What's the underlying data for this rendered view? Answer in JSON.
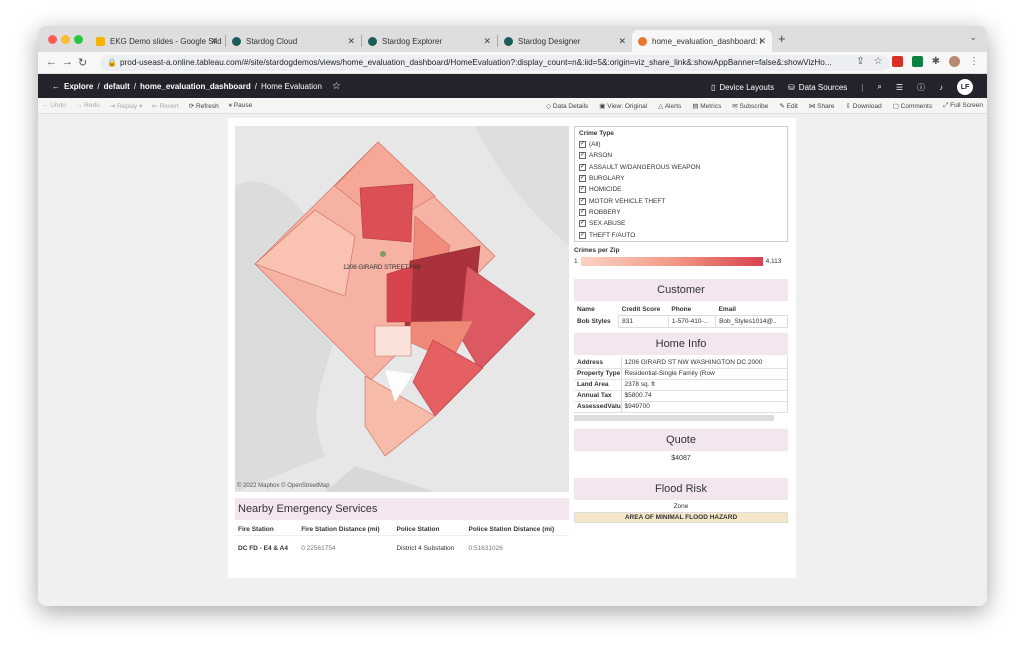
{
  "browser": {
    "tabs": [
      {
        "label": "EKG Demo slides - Google Slid",
        "icon": "slides-icon",
        "color": "#f4b400"
      },
      {
        "label": "Stardog Cloud",
        "icon": "stardog-icon",
        "color": "#1c5d5a"
      },
      {
        "label": "Stardog Explorer",
        "icon": "stardog-icon",
        "color": "#1c5d5a"
      },
      {
        "label": "Stardog Designer",
        "icon": "stardog-icon",
        "color": "#1c5d5a"
      },
      {
        "label": "home_evaluation_dashboard: I",
        "icon": "tableau-icon",
        "color": "#e8772e"
      }
    ],
    "url": "prod-useast-a.online.tableau.com/#/site/stardogdemos/views/home_evaluation_dashboard/HomeEvaluation?:display_count=n&:iid=5&:origin=viz_share_link&:showAppBanner=false&:showVizHo..."
  },
  "header": {
    "breadcrumb": [
      "Explore",
      "default",
      "home_evaluation_dashboard",
      "Home Evaluation"
    ],
    "device_layouts": "Device Layouts",
    "data_sources": "Data Sources",
    "avatar": "LF"
  },
  "toolbar": {
    "left": [
      "Undo",
      "Redo",
      "Replay",
      "Revert"
    ],
    "refresh": "Refresh",
    "pause": "Pause",
    "right": [
      "Data Details",
      "View: Original",
      "Alerts",
      "Metrics",
      "Subscribe",
      "Edit",
      "Share",
      "Download",
      "Comments",
      "Full Screen"
    ]
  },
  "map": {
    "address_label": "1206 GIRARD STREET NW",
    "credit": "© 2022 Mapbox  © OpenStreetMap"
  },
  "filter": {
    "title": "Crime Type",
    "items": [
      "(All)",
      "ARSON",
      "ASSAULT W/DANGEROUS WEAPON",
      "BURGLARY",
      "HOMICIDE",
      "MOTOR VEHICLE THEFT",
      "ROBBERY",
      "SEX ABUSE",
      "THEFT F/AUTO"
    ]
  },
  "legend": {
    "title": "Crimes per Zip",
    "min": "1",
    "max": "4,113"
  },
  "customer": {
    "title": "Customer",
    "headers": [
      "Name",
      "Credit Score",
      "Phone",
      "Email"
    ],
    "row": [
      "Bob Styles",
      "831",
      "1-570-410-..",
      "Bob_Styles1014@.."
    ]
  },
  "home_info": {
    "title": "Home Info",
    "rows": [
      [
        "Address",
        "1206 GIRARD ST NW WASHINGTON DC 2000"
      ],
      [
        "Property Type",
        "Residential-Single Family (Row"
      ],
      [
        "Land Area",
        "2378 sq. ft"
      ],
      [
        "Annual Tax",
        "$5800.74"
      ],
      [
        "AssessedValue",
        "$949700"
      ]
    ]
  },
  "quote": {
    "title": "Quote",
    "value": "$4087"
  },
  "flood": {
    "title": "Flood Risk",
    "zone_label": "Zone",
    "zone_value": "AREA OF MINIMAL FLOOD HAZARD"
  },
  "nearby": {
    "title": "Nearby Emergency Services",
    "headers": [
      "Fire Station",
      "Fire Station Distance (mi)",
      "Police Station",
      "Police Station Distance (mi)"
    ],
    "row": [
      "DC FD - E4 & A4",
      "0.22561754",
      "District 4 Substation",
      "0.51631026"
    ]
  }
}
